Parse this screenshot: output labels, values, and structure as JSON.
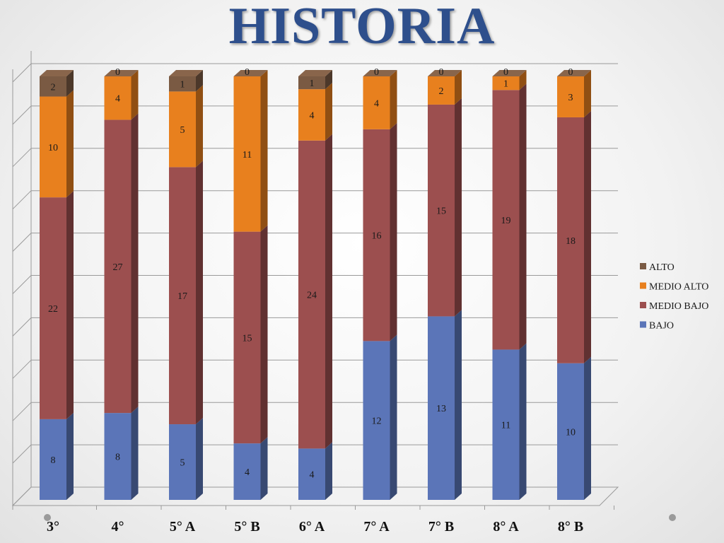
{
  "title": "HISTORIA",
  "chart_data": {
    "type": "bar",
    "stacked": true,
    "three_d": true,
    "categories": [
      "3°",
      "4°",
      "5° A",
      "5° B",
      "6° A",
      "7° A",
      "7° B",
      "8° A",
      "8° B"
    ],
    "series": [
      {
        "name": "BAJO",
        "color": "#5b75b8",
        "values": [
          8,
          8,
          5,
          4,
          4,
          12,
          13,
          11,
          10
        ]
      },
      {
        "name": "MEDIO BAJO",
        "color": "#9c4f4f",
        "values": [
          22,
          27,
          17,
          15,
          24,
          16,
          15,
          19,
          18
        ]
      },
      {
        "name": "MEDIO ALTO",
        "color": "#e8801e",
        "values": [
          10,
          4,
          5,
          11,
          4,
          4,
          2,
          1,
          3
        ]
      },
      {
        "name": "ALTO",
        "color": "#7a5a43",
        "values": [
          2,
          0,
          1,
          0,
          1,
          0,
          0,
          0,
          0
        ]
      }
    ],
    "legend_position": "right",
    "grid": true
  }
}
